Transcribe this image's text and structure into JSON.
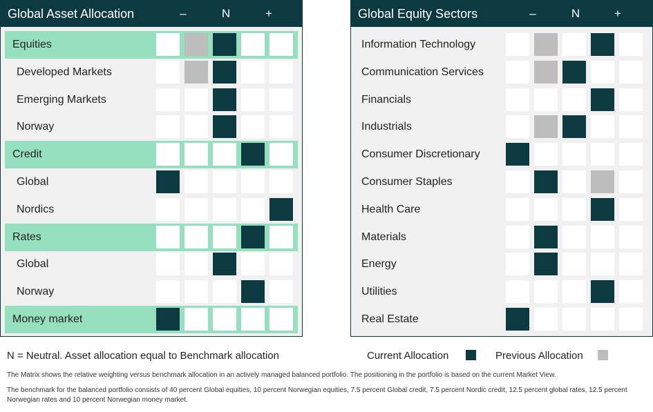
{
  "chart_data": [
    {
      "type": "table",
      "title": "Global Asset Allocation",
      "columns": [
        "–",
        "N",
        "+"
      ],
      "rows": [
        {
          "label": "Equities",
          "group": true,
          "current": 3,
          "previous": 2
        },
        {
          "label": "Developed Markets",
          "group": false,
          "current": 3,
          "previous": 2
        },
        {
          "label": "Emerging Markets",
          "group": false,
          "current": 3,
          "previous": null
        },
        {
          "label": "Norway",
          "group": false,
          "current": 3,
          "previous": null
        },
        {
          "label": "Credit",
          "group": true,
          "current": 4,
          "previous": null
        },
        {
          "label": "Global",
          "group": false,
          "current": 1,
          "previous": null
        },
        {
          "label": "Nordics",
          "group": false,
          "current": 5,
          "previous": null
        },
        {
          "label": "Rates",
          "group": true,
          "current": 4,
          "previous": null
        },
        {
          "label": "Global",
          "group": false,
          "current": 3,
          "previous": null
        },
        {
          "label": "Norway",
          "group": false,
          "current": 4,
          "previous": null
        },
        {
          "label": "Money market",
          "group": true,
          "current": 1,
          "previous": null
        }
      ]
    },
    {
      "type": "table",
      "title": "Global Equity Sectors",
      "columns": [
        "–",
        "N",
        "+"
      ],
      "rows": [
        {
          "label": "Information Technology",
          "group": false,
          "current": 4,
          "previous": 2
        },
        {
          "label": "Communication Services",
          "group": false,
          "current": 3,
          "previous": 2
        },
        {
          "label": "Financials",
          "group": false,
          "current": 4,
          "previous": null
        },
        {
          "label": "Industrials",
          "group": false,
          "current": 3,
          "previous": 2
        },
        {
          "label": "Consumer Discretionary",
          "group": false,
          "current": 1,
          "previous": null
        },
        {
          "label": "Consumer Staples",
          "group": false,
          "current": 2,
          "previous": 4
        },
        {
          "label": "Health Care",
          "group": false,
          "current": 4,
          "previous": null
        },
        {
          "label": "Materials",
          "group": false,
          "current": 2,
          "previous": null
        },
        {
          "label": "Energy",
          "group": false,
          "current": 2,
          "previous": null
        },
        {
          "label": "Utilities",
          "group": false,
          "current": 4,
          "previous": null
        },
        {
          "label": "Real Estate",
          "group": false,
          "current": 1,
          "previous": null
        }
      ]
    }
  ],
  "legend": {
    "neutral_note": "N = Neutral. Asset allocation equal to Benchmark allocation",
    "current_label": "Current Allocation",
    "previous_label": "Previous Allocation",
    "current_color": "#0c3a40",
    "previous_color": "#bdbdbd",
    "highlight_color": "#96e0c0"
  },
  "footnotes": {
    "line1": "The Matrix shows the relative weighting versus benchmark allocation in an actively managed balanced portfolio. The positioning in the portfolio is based on the current Market View.",
    "line2": "The benchmark for the balanced portfolio consists of 40 percent Global equities, 10 percent Norwegian equities, 7.5 percent Global credit, 7.5 percent Nordic credit, 12.5 percent global rates, 12.5 percent Norwegian rates and 10 percent Norwegian money market."
  }
}
